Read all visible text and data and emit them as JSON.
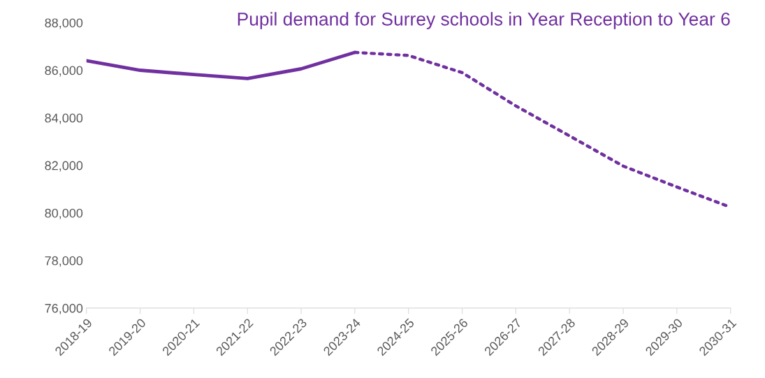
{
  "chart_data": {
    "type": "line",
    "title": "Pupil demand for Surrey schools in Year Reception to Year 6",
    "categories": [
      "2018-19",
      "2019-20",
      "2020-21",
      "2021-22",
      "2022-23",
      "2023-24",
      "2024-25",
      "2025-26",
      "2026-27",
      "2027-28",
      "2028-29",
      "2029-30",
      "2030-31"
    ],
    "series": [
      {
        "color": "#7030a0",
        "line_style": "solid",
        "values": [
          86400,
          86000,
          85820,
          85650,
          86060,
          86750,
          null,
          null,
          null,
          null,
          null,
          null,
          null
        ]
      },
      {
        "color": "#7030a0",
        "line_style": "dotted",
        "values": [
          null,
          null,
          null,
          null,
          null,
          86750,
          86620,
          85900,
          84500,
          83240,
          81970,
          81090,
          80240
        ]
      }
    ],
    "ylim": [
      76000,
      88000
    ],
    "yticks": [
      {
        "value": 76000,
        "label": "76,000"
      },
      {
        "value": 78000,
        "label": "78,000"
      },
      {
        "value": 80000,
        "label": "80,000"
      },
      {
        "value": 82000,
        "label": "82,000"
      },
      {
        "value": 84000,
        "label": "84,000"
      },
      {
        "value": 86000,
        "label": "86,000"
      },
      {
        "value": 88000,
        "label": "88,000"
      }
    ],
    "grid": false,
    "legend": false
  }
}
